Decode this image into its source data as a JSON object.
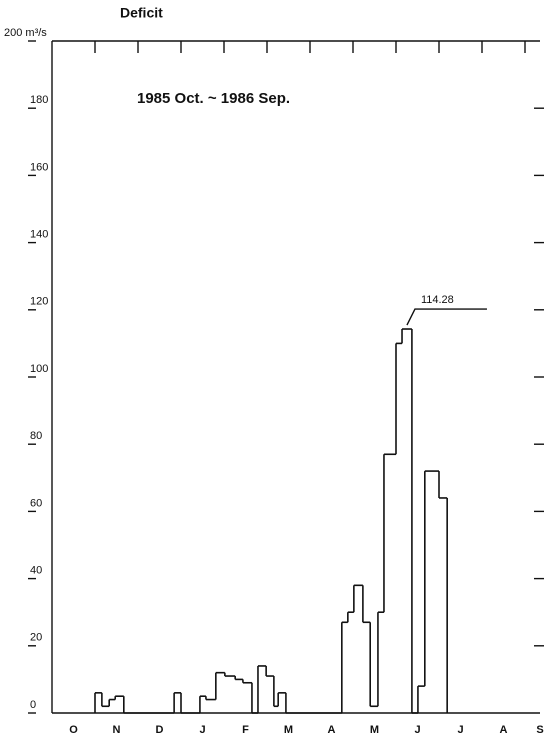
{
  "chart_data": {
    "type": "step",
    "title": "Deficit",
    "subtitle": "1985 Oct. ~ 1986 Sep.",
    "xlim": [
      0,
      12
    ],
    "xticks": [
      {
        "value": 0.5,
        "label": "O"
      },
      {
        "value": 1.5,
        "label": "N"
      },
      {
        "value": 2.5,
        "label": "D"
      },
      {
        "value": 3.5,
        "label": "J"
      },
      {
        "value": 4.5,
        "label": "F"
      },
      {
        "value": 5.5,
        "label": "M"
      },
      {
        "value": 6.5,
        "label": "A"
      },
      {
        "value": 7.5,
        "label": "M"
      },
      {
        "value": 8.5,
        "label": "J"
      },
      {
        "value": 9.5,
        "label": "J"
      },
      {
        "value": 10.5,
        "label": "A"
      },
      {
        "value": 11.5,
        "label": "S"
      }
    ],
    "ylim": [
      0,
      200
    ],
    "yticks": [
      0,
      20,
      40,
      60,
      80,
      100,
      120,
      140,
      160,
      180,
      {
        "value": 200,
        "label": "200 m³/s"
      }
    ],
    "series": [
      {
        "color": "#111111",
        "x": [
          1.0,
          1.16,
          1.33,
          1.47,
          1.67,
          2.84,
          3.0,
          3.44,
          3.58,
          3.81,
          4.02,
          4.26,
          4.44,
          4.65,
          4.79,
          4.98,
          5.16,
          5.26,
          5.44,
          6.74,
          6.88,
          7.02,
          7.23,
          7.4,
          7.58,
          7.72,
          8.0,
          8.14,
          8.37,
          8.51,
          8.67,
          9.0,
          9.19
        ],
        "values": [
          6,
          2,
          4,
          5,
          0,
          6,
          0,
          5,
          4,
          12,
          11,
          10,
          9,
          0,
          14,
          11,
          2,
          6,
          0,
          27,
          30,
          38,
          27,
          2,
          30,
          77,
          110,
          114.28,
          0,
          8,
          72,
          64,
          0
        ]
      }
    ]
  }
}
